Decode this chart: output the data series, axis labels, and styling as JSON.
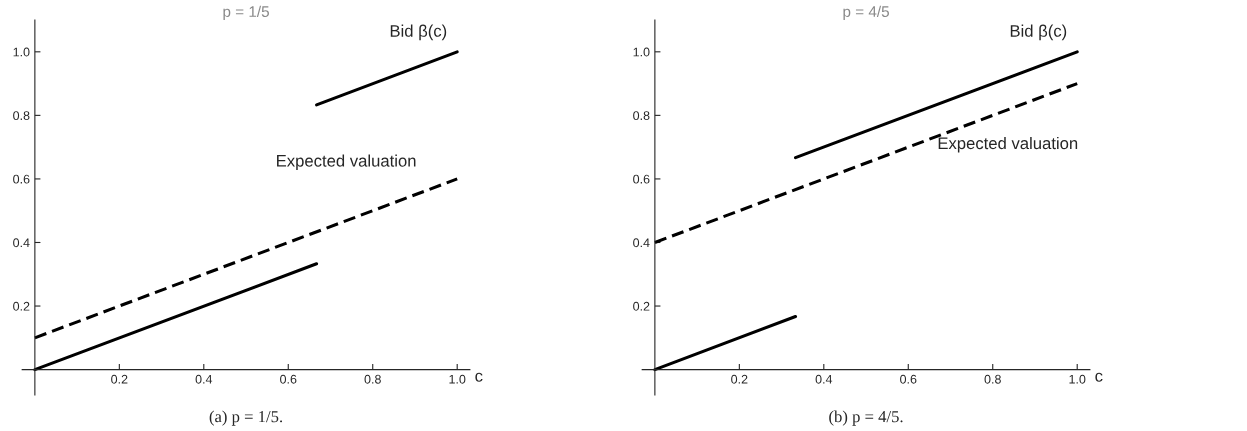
{
  "chart_data": [
    {
      "type": "line",
      "title": "p = 1/5",
      "xlabel": "c",
      "xlim": [
        -0.03,
        1.03
      ],
      "ylim": [
        -0.08,
        1.1
      ],
      "xticks": [
        0.2,
        0.4,
        0.6,
        0.8,
        {
          "value": 1.0,
          "label": "1.0"
        }
      ],
      "yticks": [
        0.2,
        0.4,
        0.6,
        0.8,
        {
          "value": 1.0,
          "label": "1.0"
        }
      ],
      "grid": false,
      "legend": false,
      "series": [
        {
          "color": "#000000",
          "line_style": "solid",
          "x": [
            0,
            0.667
          ],
          "values": [
            0,
            0.333
          ]
        },
        {
          "name": "Bid β(c)",
          "color": "#000000",
          "line_style": "solid",
          "x": [
            0.667,
            1
          ],
          "values": [
            0.833,
            1
          ]
        },
        {
          "name": "Expected valuation",
          "color": "#000000",
          "line_style": "dashed",
          "x": [
            0,
            1
          ],
          "values": [
            0.1,
            0.6
          ]
        }
      ],
      "annotations": [
        "(a) p = 1/5."
      ]
    },
    {
      "type": "line",
      "title": "p = 4/5",
      "xlabel": "c",
      "xlim": [
        -0.03,
        1.03
      ],
      "ylim": [
        -0.08,
        1.1
      ],
      "xticks": [
        0.2,
        0.4,
        0.6,
        0.8,
        {
          "value": 1.0,
          "label": "1.0"
        }
      ],
      "yticks": [
        0.2,
        0.4,
        0.6,
        0.8,
        {
          "value": 1.0,
          "label": "1.0"
        }
      ],
      "grid": false,
      "legend": false,
      "series": [
        {
          "color": "#000000",
          "line_style": "solid",
          "x": [
            0,
            0.333
          ],
          "values": [
            0,
            0.167
          ]
        },
        {
          "name": "Bid β(c)",
          "color": "#000000",
          "line_style": "solid",
          "x": [
            0.333,
            1
          ],
          "values": [
            0.667,
            1
          ]
        },
        {
          "name": "Expected valuation",
          "color": "#000000",
          "line_style": "dashed",
          "x": [
            0,
            1
          ],
          "values": [
            0.4,
            0.9
          ]
        }
      ],
      "annotations": [
        "(b) p = 4/5."
      ]
    }
  ]
}
